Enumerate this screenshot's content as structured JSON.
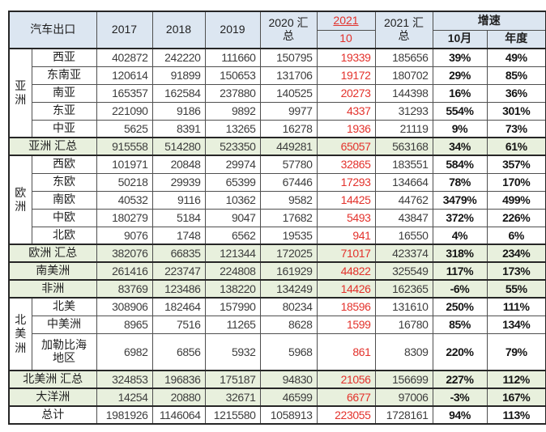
{
  "colors": {
    "header_bg": "#dce6f1",
    "summary_bg": "#e8f0dd",
    "red_text": "#e3322c",
    "border": "#262626"
  },
  "chart_data": {
    "type": "table",
    "title": "汽车出口",
    "header": {
      "corner": "汽车出口",
      "y2017": "2017",
      "y2018": "2018",
      "y2019": "2019",
      "total_2020": "2020 汇\n总",
      "month_2021": "2021",
      "month_2021_sub": "10",
      "total_2021": "2021 汇\n总",
      "growth": "增速",
      "growth_oct": "10月",
      "growth_year": "年度"
    },
    "columns_order": [
      "2017",
      "2018",
      "2019",
      "2020汇总",
      "2021年10月",
      "2021汇总",
      "增速10月",
      "增速年度"
    ],
    "rows": [
      {
        "style": "data",
        "group": {
          "label": "亚洲",
          "span": 5
        },
        "label": "西亚",
        "cells": [
          "402872",
          "242220",
          "111660",
          "150795",
          "19339",
          "185656",
          "39%",
          "49%"
        ]
      },
      {
        "style": "data",
        "label": "东南亚",
        "cells": [
          "120614",
          "91899",
          "150653",
          "131706",
          "19172",
          "180702",
          "29%",
          "85%"
        ]
      },
      {
        "style": "data",
        "label": "南亚",
        "cells": [
          "165357",
          "162584",
          "237880",
          "140525",
          "20273",
          "144398",
          "16%",
          "36%"
        ]
      },
      {
        "style": "data",
        "label": "东亚",
        "cells": [
          "221090",
          "9186",
          "9892",
          "9977",
          "4337",
          "31293",
          "554%",
          "301%"
        ]
      },
      {
        "style": "data",
        "label": "中亚",
        "cells": [
          "5625",
          "8391",
          "13265",
          "16278",
          "1936",
          "21119",
          "9%",
          "73%"
        ]
      },
      {
        "style": "summary",
        "label": "亚洲 汇总",
        "cells": [
          "915558",
          "514280",
          "523350",
          "449281",
          "65057",
          "563168",
          "34%",
          "61%"
        ]
      },
      {
        "style": "data",
        "group": {
          "label": "欧洲",
          "span": 5
        },
        "label": "西欧",
        "cells": [
          "101971",
          "20848",
          "29974",
          "57780",
          "32865",
          "183551",
          "584%",
          "357%"
        ]
      },
      {
        "style": "data",
        "label": "东欧",
        "cells": [
          "50218",
          "29939",
          "65399",
          "67446",
          "17293",
          "134664",
          "78%",
          "170%"
        ]
      },
      {
        "style": "data",
        "label": "南欧",
        "cells": [
          "40532",
          "9116",
          "10362",
          "9582",
          "14425",
          "44762",
          "3479%",
          "499%"
        ]
      },
      {
        "style": "data",
        "label": "中欧",
        "cells": [
          "180279",
          "5184",
          "9047",
          "17682",
          "5493",
          "43847",
          "372%",
          "226%"
        ]
      },
      {
        "style": "data",
        "label": "北欧",
        "cells": [
          "9076",
          "1748",
          "6562",
          "19535",
          "941",
          "16550",
          "4%",
          "6%"
        ]
      },
      {
        "style": "summary",
        "label": "欧洲 汇总",
        "cells": [
          "382076",
          "66835",
          "121344",
          "172025",
          "71017",
          "423374",
          "318%",
          "234%"
        ]
      },
      {
        "style": "summary",
        "label": "南美洲",
        "cells": [
          "261416",
          "223747",
          "224808",
          "161929",
          "44822",
          "325549",
          "117%",
          "173%"
        ]
      },
      {
        "style": "summary",
        "label": "非洲",
        "cells": [
          "83769",
          "123486",
          "138220",
          "134249",
          "14426",
          "162365",
          "-6%",
          "55%"
        ]
      },
      {
        "style": "data",
        "group": {
          "label": "北美洲",
          "span": 3
        },
        "label": "北美",
        "cells": [
          "308906",
          "182464",
          "157990",
          "80234",
          "18596",
          "131610",
          "250%",
          "111%"
        ]
      },
      {
        "style": "data",
        "label": "中美洲",
        "cells": [
          "8965",
          "7516",
          "11265",
          "8628",
          "1599",
          "16780",
          "85%",
          "134%"
        ]
      },
      {
        "style": "data",
        "tall": true,
        "label": "加勒比海\n地区",
        "cells": [
          "6982",
          "6856",
          "5932",
          "5968",
          "861",
          "8309",
          "220%",
          "79%"
        ]
      },
      {
        "style": "summary",
        "label": "北美洲 汇总",
        "cells": [
          "324853",
          "196836",
          "175187",
          "94830",
          "21056",
          "156699",
          "227%",
          "112%"
        ]
      },
      {
        "style": "summary",
        "label": "大洋洲",
        "cells": [
          "14254",
          "20880",
          "32671",
          "46599",
          "6677",
          "97006",
          "-3%",
          "167%"
        ]
      },
      {
        "style": "total",
        "label": "总计",
        "cells": [
          "1981926",
          "1146064",
          "1215580",
          "1058913",
          "223055",
          "1728161",
          "94%",
          "113%"
        ]
      }
    ]
  }
}
